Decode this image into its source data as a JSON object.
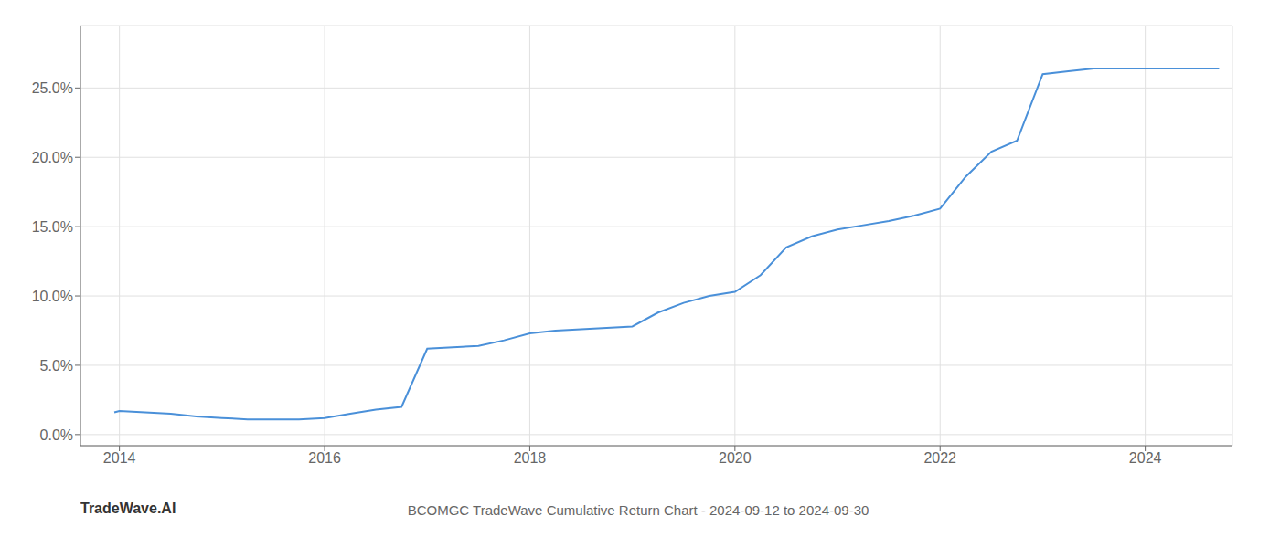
{
  "chart_data": {
    "type": "line",
    "title": "BCOMGC TradeWave Cumulative Return Chart - 2024-09-12 to 2024-09-30",
    "annotations": [
      "TradeWave.AI"
    ],
    "x": [
      2013.95,
      2014.0,
      2014.25,
      2014.5,
      2014.75,
      2015.0,
      2015.25,
      2015.5,
      2015.75,
      2016.0,
      2016.25,
      2016.5,
      2016.75,
      2017.0,
      2017.25,
      2017.5,
      2017.75,
      2018.0,
      2018.25,
      2018.5,
      2018.75,
      2019.0,
      2019.25,
      2019.5,
      2019.75,
      2020.0,
      2020.25,
      2020.5,
      2020.75,
      2021.0,
      2021.25,
      2021.5,
      2021.75,
      2022.0,
      2022.25,
      2022.5,
      2022.75,
      2023.0,
      2023.25,
      2023.5,
      2024.0,
      2024.5,
      2024.72
    ],
    "values": [
      0.016,
      0.017,
      0.016,
      0.015,
      0.013,
      0.012,
      0.011,
      0.011,
      0.011,
      0.012,
      0.015,
      0.018,
      0.02,
      0.062,
      0.063,
      0.064,
      0.068,
      0.073,
      0.075,
      0.076,
      0.077,
      0.078,
      0.088,
      0.095,
      0.1,
      0.103,
      0.115,
      0.135,
      0.143,
      0.148,
      0.151,
      0.154,
      0.158,
      0.163,
      0.186,
      0.204,
      0.212,
      0.26,
      0.262,
      0.264,
      0.264,
      0.264,
      0.264
    ],
    "color": "#4a90d9",
    "xlim": [
      2013.62,
      2024.85
    ],
    "ylim": [
      -0.008,
      0.295
    ],
    "xticks": [
      2014,
      2016,
      2018,
      2020,
      2022,
      2024
    ],
    "yticks": [
      {
        "value": 0.0,
        "label": "0.0%"
      },
      {
        "value": 0.05,
        "label": "5.0%"
      },
      {
        "value": 0.1,
        "label": "10.0%"
      },
      {
        "value": 0.15,
        "label": "15.0%"
      },
      {
        "value": 0.2,
        "label": "20.0%"
      },
      {
        "value": 0.25,
        "label": "25.0%"
      }
    ],
    "grid": true
  }
}
